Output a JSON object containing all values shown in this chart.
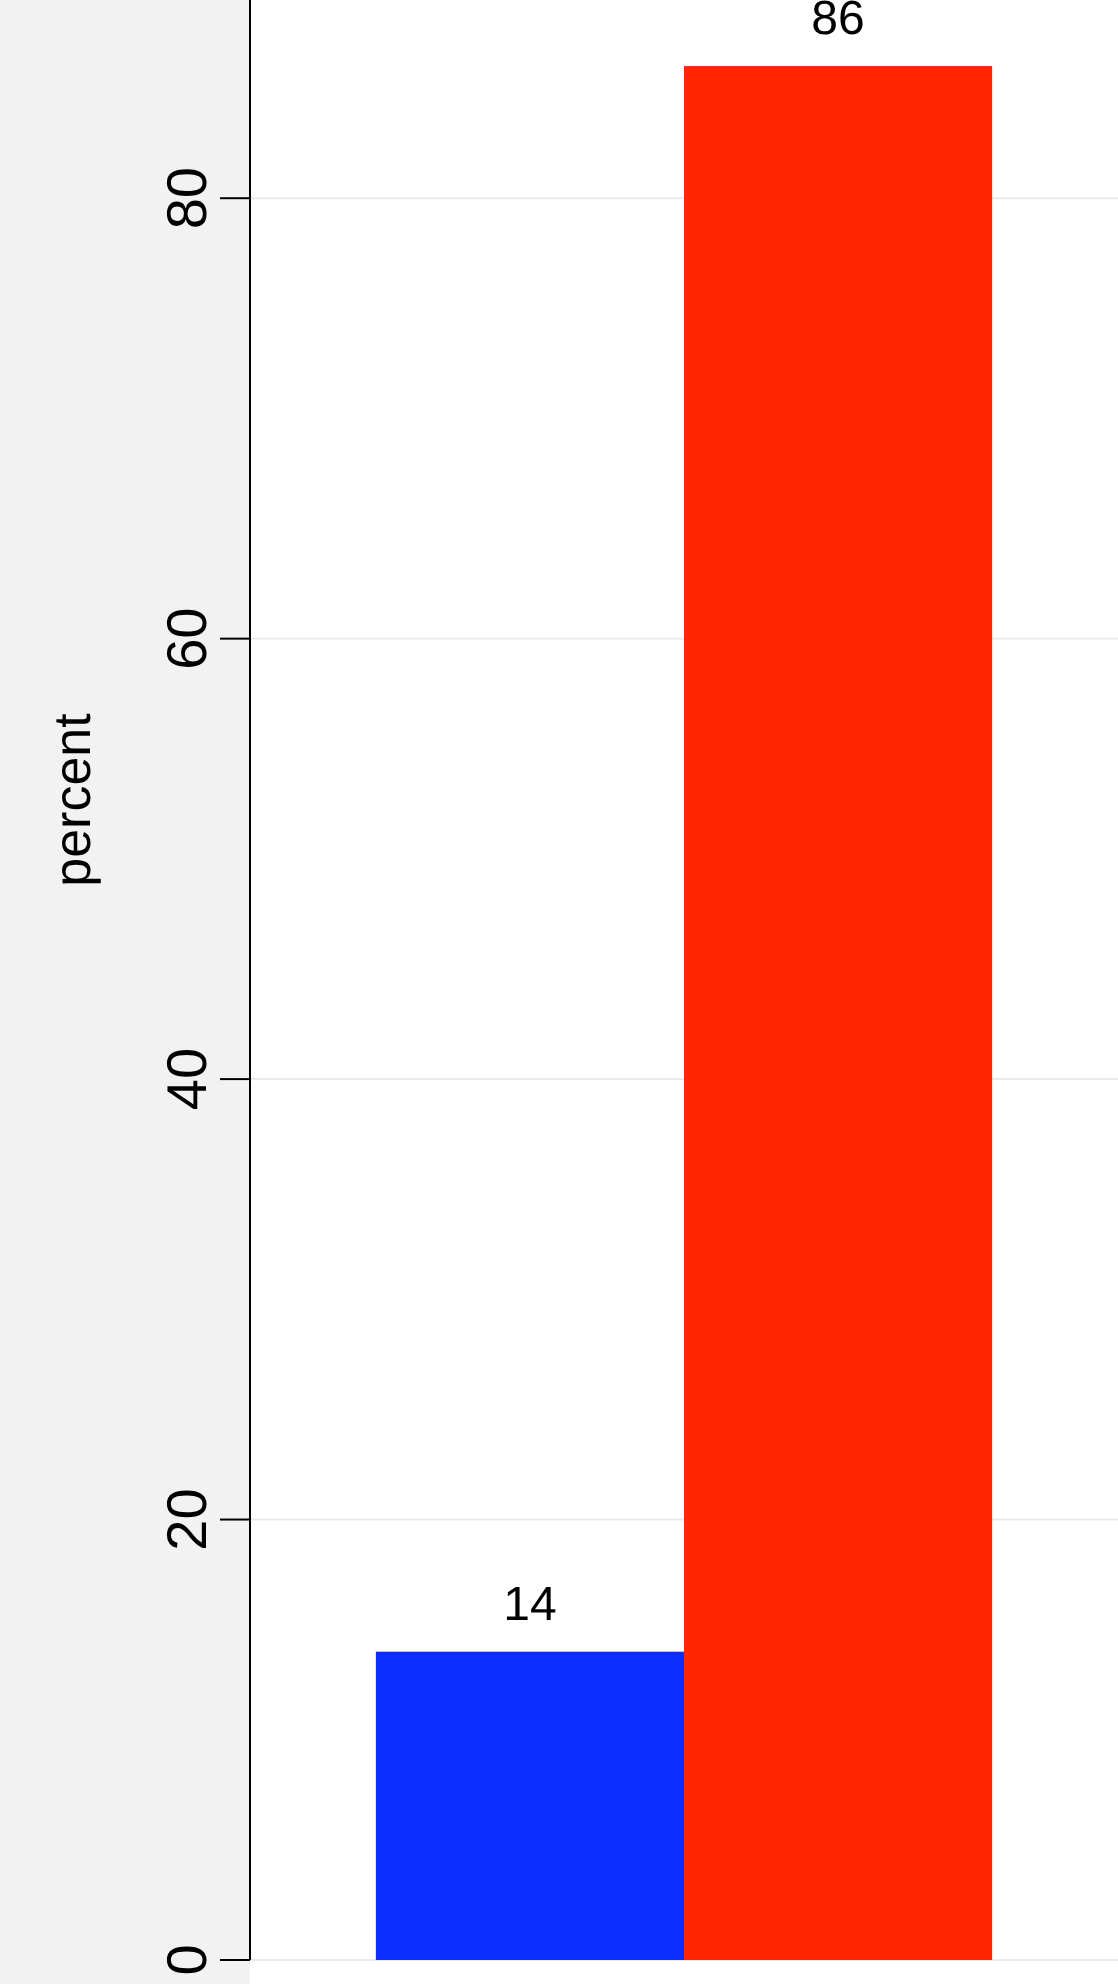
{
  "chart_data": {
    "type": "bar",
    "ylabel": "percent",
    "categories": [
      null
    ],
    "series": [
      {
        "color": "#0d2eff",
        "values": [
          14
        ]
      },
      {
        "color": "#ff2600",
        "values": [
          86
        ]
      }
    ],
    "ylim": [
      0,
      89
    ],
    "yticks": [
      0,
      20,
      40,
      60,
      80
    ],
    "grid": "y",
    "data_labels": true
  }
}
